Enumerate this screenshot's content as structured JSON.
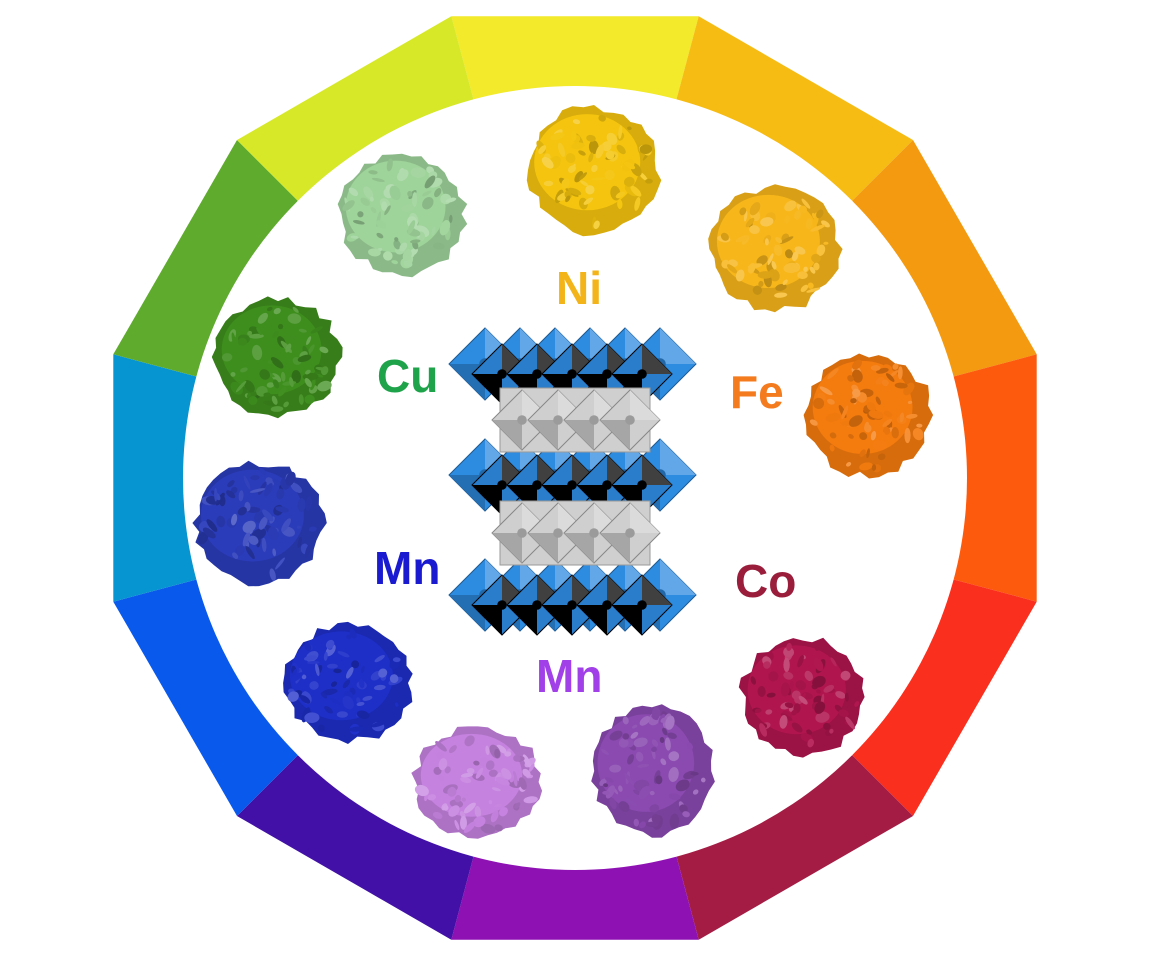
{
  "color_wheel": {
    "segments": [
      {
        "name": "yellow",
        "color": "#F2EA2A"
      },
      {
        "name": "yellow-orange",
        "color": "#F6BC14"
      },
      {
        "name": "orange",
        "color": "#F39A10"
      },
      {
        "name": "red-orange",
        "color": "#FE5A0E"
      },
      {
        "name": "red",
        "color": "#FA2F1D"
      },
      {
        "name": "crimson",
        "color": "#A41C44"
      },
      {
        "name": "purple",
        "color": "#8E11B4"
      },
      {
        "name": "indigo",
        "color": "#4210A6"
      },
      {
        "name": "blue",
        "color": "#0A59ED"
      },
      {
        "name": "cyan-blue",
        "color": "#0695D0"
      },
      {
        "name": "green",
        "color": "#5FAB2E"
      },
      {
        "name": "yellow-green",
        "color": "#D6E827"
      }
    ]
  },
  "labels": {
    "ni": {
      "text": "Ni",
      "color": "#F3B419"
    },
    "fe": {
      "text": "Fe",
      "color": "#F47B1E"
    },
    "co": {
      "text": "Co",
      "color": "#9A1E3C"
    },
    "mn_bottom": {
      "text": "Mn",
      "color": "#A13FE8"
    },
    "mn_left": {
      "text": "Mn",
      "color": "#1A1AD0"
    },
    "cu": {
      "text": "Cu",
      "color": "#1EA34A"
    }
  },
  "powders": [
    {
      "name": "green-pale",
      "color": "#9ED39A"
    },
    {
      "name": "yellow",
      "color": "#F4C40E"
    },
    {
      "name": "yellow-orange",
      "color": "#F7B61A"
    },
    {
      "name": "orange",
      "color": "#F47B0E"
    },
    {
      "name": "crimson",
      "color": "#B0154E"
    },
    {
      "name": "violet",
      "color": "#8A4AB0"
    },
    {
      "name": "lilac",
      "color": "#C582DF"
    },
    {
      "name": "ultramarine",
      "color": "#1E2FC8"
    },
    {
      "name": "royal-blue",
      "color": "#2B3CBA"
    },
    {
      "name": "green",
      "color": "#3E8E1E"
    }
  ],
  "structure": {
    "octahedron_color": "#2D8BE0",
    "slab_color": "#CFCFCF"
  }
}
